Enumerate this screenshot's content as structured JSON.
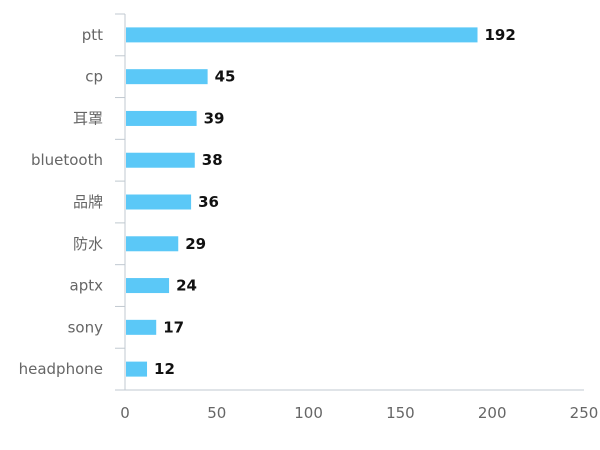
{
  "chart_data": {
    "type": "bar",
    "orientation": "horizontal",
    "categories": [
      "ptt",
      "cp",
      "耳罩",
      "bluetooth",
      "品牌",
      "防水",
      "aptx",
      "sony",
      "headphone"
    ],
    "values": [
      192,
      45,
      39,
      38,
      36,
      29,
      24,
      17,
      12
    ],
    "xlim": [
      0,
      250
    ],
    "xticks": [
      0,
      50,
      100,
      150,
      200,
      250
    ],
    "xtick_labels": [
      "0",
      "50",
      "100",
      "150",
      "200",
      "250"
    ],
    "data_labels": [
      "192",
      "45",
      "39",
      "38",
      "36",
      "29",
      "24",
      "17",
      "12"
    ],
    "grid": false,
    "legend": "none",
    "bar_color": "#5BC8F7",
    "axis_color": "#C0C8D0"
  }
}
